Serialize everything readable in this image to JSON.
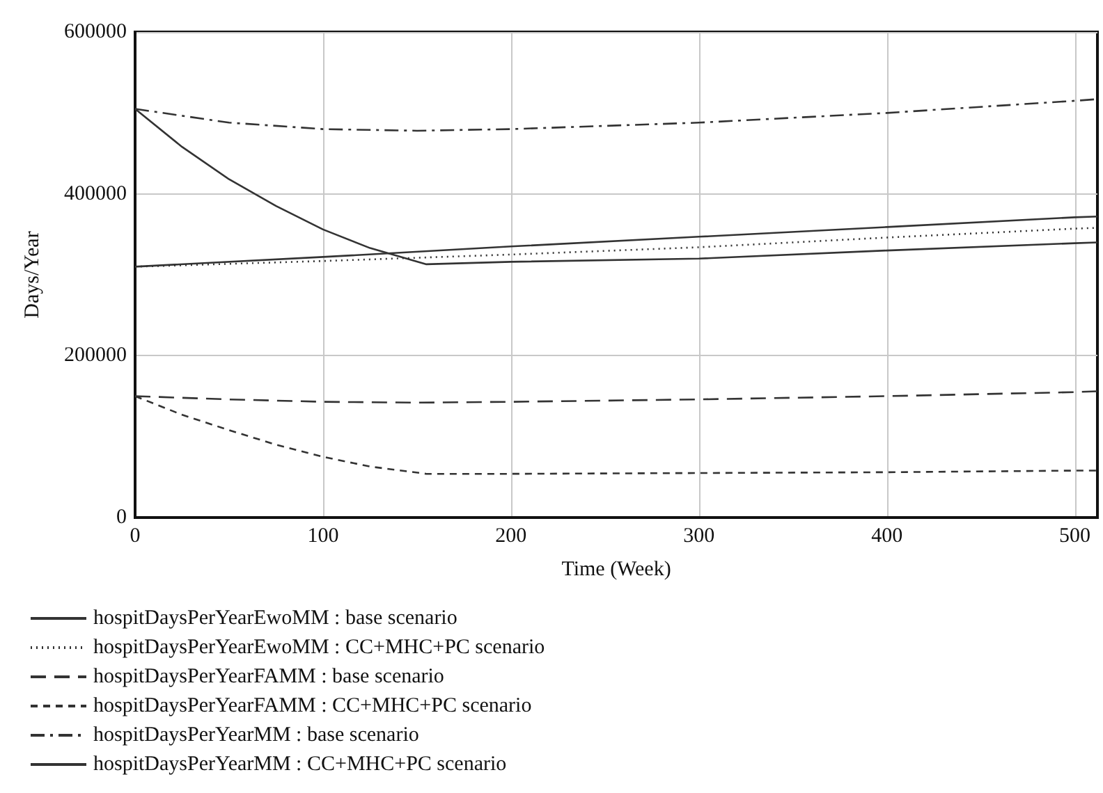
{
  "chart_data": {
    "type": "line",
    "xlabel": "Time (Week)",
    "ylabel": "Days/Year",
    "xlim": [
      0,
      512
    ],
    "xticks": [
      0,
      100,
      200,
      300,
      400,
      500
    ],
    "ylim": [
      0,
      600000
    ],
    "yticks": [
      0,
      200000,
      400000,
      600000
    ],
    "grid": true,
    "legend": "bottom",
    "marker": "none",
    "series": [
      {
        "name": "hospitDaysPerYearEwoMM : base scenario",
        "color": "#333333",
        "line_style": "solid",
        "x": [
          0,
          100,
          200,
          300,
          400,
          500,
          512
        ],
        "values": [
          310000,
          322000,
          335000,
          347000,
          359000,
          371000,
          372000
        ]
      },
      {
        "name": "hospitDaysPerYearEwoMM : CC+MHC+PC scenario",
        "color": "#333333",
        "line_style": "dotted",
        "x": [
          0,
          100,
          200,
          300,
          400,
          500,
          512
        ],
        "values": [
          310000,
          317000,
          325000,
          334000,
          346000,
          357000,
          358000
        ]
      },
      {
        "name": "hospitDaysPerYearFAMM : base scenario",
        "color": "#333333",
        "line_style": "longdash",
        "x": [
          0,
          50,
          100,
          150,
          200,
          300,
          400,
          500,
          512
        ],
        "values": [
          150000,
          146000,
          143000,
          142000,
          143000,
          146000,
          150000,
          155000,
          156000
        ]
      },
      {
        "name": "hospitDaysPerYearFAMM : CC+MHC+PC scenario",
        "color": "#333333",
        "line_style": "dashed",
        "x": [
          0,
          25,
          50,
          75,
          100,
          125,
          155,
          200,
          300,
          400,
          500,
          512
        ],
        "values": [
          150000,
          127000,
          108000,
          90000,
          75000,
          63000,
          54000,
          54000,
          55000,
          56000,
          58000,
          58000
        ]
      },
      {
        "name": "hospitDaysPerYearMM : base scenario",
        "color": "#333333",
        "line_style": "dashdot",
        "x": [
          0,
          50,
          100,
          150,
          200,
          300,
          400,
          500,
          512
        ],
        "values": [
          505000,
          488000,
          480000,
          478000,
          480000,
          488000,
          500000,
          515000,
          517000
        ]
      },
      {
        "name": "hospitDaysPerYearMM : CC+MHC+PC scenario",
        "color": "#333333",
        "line_style": "solid",
        "x": [
          0,
          25,
          50,
          75,
          100,
          125,
          155,
          200,
          300,
          400,
          500,
          512
        ],
        "values": [
          505000,
          458000,
          418000,
          385000,
          356000,
          333000,
          313000,
          316000,
          320000,
          330000,
          339000,
          340000
        ]
      }
    ]
  }
}
